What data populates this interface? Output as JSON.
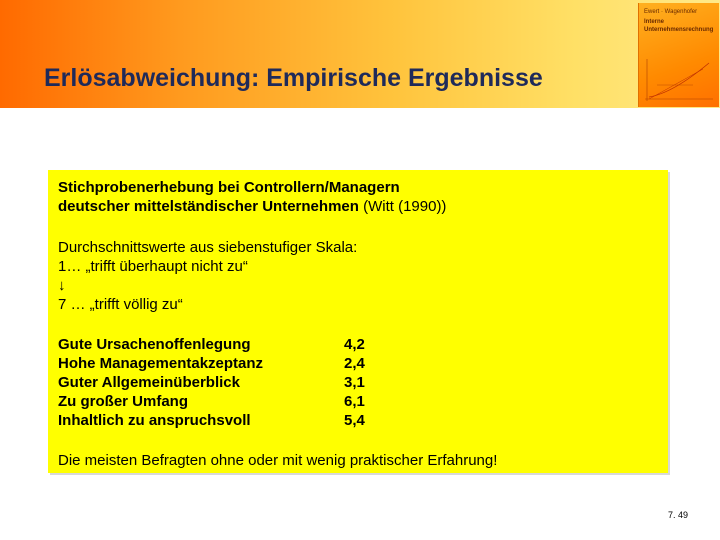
{
  "title": "Erlösabweichung: Empirische Ergebnisse",
  "book": {
    "line1": "Ewert · Wagenhofer",
    "line2": "Interne",
    "line3": "Unternehmensrechnung"
  },
  "content": {
    "heading_line1": "Stichprobenerhebung bei Controllern/Managern",
    "heading_line2": "deutscher mittelständischer Unternehmen",
    "citation": " (Witt (1990))",
    "scale_intro": "Durchschnittswerte aus siebenstufiger Skala:",
    "scale_low": "1… „trifft überhaupt nicht zu“",
    "scale_arrow": "↓",
    "scale_high": "7 … „trifft völlig zu“",
    "items": [
      {
        "label": "Gute Ursachenoffenlegung",
        "value": "4,2"
      },
      {
        "label": "Hohe Managementakzeptanz",
        "value": "2,4"
      },
      {
        "label": "Guter Allgemeinüberblick",
        "value": "3,1"
      },
      {
        "label": "Zu großer Umfang",
        "value": "6,1"
      },
      {
        "label": "Inhaltlich zu anspruchsvoll",
        "value": "5,4"
      }
    ],
    "conclusion": "Die meisten Befragten ohne oder mit wenig praktischer Erfahrung!"
  },
  "page_number": "7. 49"
}
